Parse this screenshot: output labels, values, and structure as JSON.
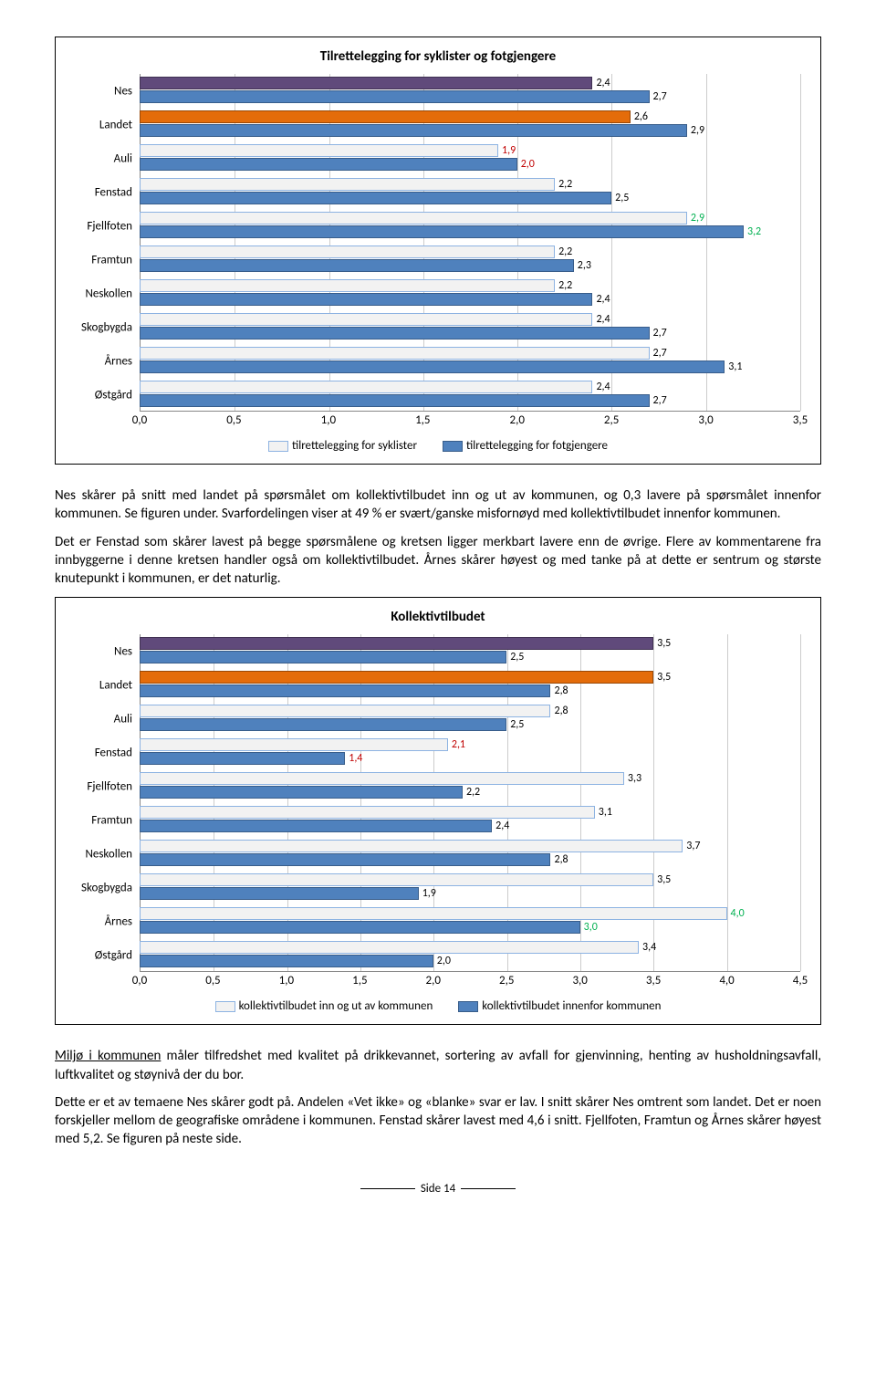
{
  "chart1": {
    "title": "Tilrettelegging for syklister og fotgjengere",
    "xmax": 3.5,
    "xstep": 0.5,
    "series": [
      {
        "name": "tilrettelegging for syklister",
        "fill": "#f2f2f2",
        "border": "#8db3e2"
      },
      {
        "name": "tilrettelegging for fotgjengere",
        "fill": "#4f81bd",
        "border": "#385d8a"
      }
    ],
    "special_bars": [
      {
        "cat": "Nes",
        "series": 0,
        "fill": "#604a7b",
        "border": "#403152"
      },
      {
        "cat": "Landet",
        "series": 0,
        "fill": "#e46c0a",
        "border": "#984807"
      }
    ],
    "label_colors": {
      "default": "#000000",
      "highlight_low": "#c00000",
      "highlight_high": "#00b050"
    },
    "categories": [
      "Nes",
      "Landet",
      "Auli",
      "Fenstad",
      "Fjellfoten",
      "Framtun",
      "Neskollen",
      "Skogbygda",
      "Årnes",
      "Østgård"
    ],
    "data": [
      {
        "cat": "Nes",
        "a": 2.4,
        "b": 2.7,
        "a_color": "#000000",
        "b_color": "#000000"
      },
      {
        "cat": "Landet",
        "a": 2.6,
        "b": 2.9,
        "a_color": "#000000",
        "b_color": "#000000"
      },
      {
        "cat": "Auli",
        "a": 1.9,
        "b": 2.0,
        "a_color": "#c00000",
        "b_color": "#c00000"
      },
      {
        "cat": "Fenstad",
        "a": 2.2,
        "b": 2.5,
        "a_color": "#000000",
        "b_color": "#000000"
      },
      {
        "cat": "Fjellfoten",
        "a": 2.9,
        "b": 3.2,
        "a_color": "#00b050",
        "b_color": "#00b050"
      },
      {
        "cat": "Framtun",
        "a": 2.2,
        "b": 2.3,
        "a_color": "#000000",
        "b_color": "#000000"
      },
      {
        "cat": "Neskollen",
        "a": 2.2,
        "b": 2.4,
        "a_color": "#000000",
        "b_color": "#000000"
      },
      {
        "cat": "Skogbygda",
        "a": 2.4,
        "b": 2.7,
        "a_color": "#000000",
        "b_color": "#000000"
      },
      {
        "cat": "Årnes",
        "a": 2.7,
        "b": 3.1,
        "a_color": "#000000",
        "b_color": "#000000"
      },
      {
        "cat": "Østgård",
        "a": 2.4,
        "b": 2.7,
        "a_color": "#000000",
        "b_color": "#000000"
      }
    ]
  },
  "para1": "Nes skårer på snitt med landet på spørsmålet om kollektivtilbudet inn og ut av kommunen, og 0,3 lavere på spørsmålet innenfor kommunen. Se figuren under. Svarfordelingen viser at 49 % er svært/ganske misfornøyd med kollektivtilbudet innenfor kommunen.",
  "para2": "Det er Fenstad som skårer lavest på begge spørsmålene og kretsen ligger merkbart lavere enn de øvrige. Flere av kommentarene fra innbyggerne i denne kretsen handler også om kollektivtilbudet. Årnes skårer høyest og med tanke på at dette er sentrum og største knutepunkt i kommunen, er det naturlig.",
  "chart2": {
    "title": "Kollektivtilbudet",
    "xmax": 4.5,
    "xstep": 0.5,
    "series": [
      {
        "name": "kollektivtilbudet inn og ut av kommunen",
        "fill": "#f2f2f2",
        "border": "#8db3e2"
      },
      {
        "name": "kollektivtilbudet innenfor kommunen",
        "fill": "#4f81bd",
        "border": "#385d8a"
      }
    ],
    "special_bars": [
      {
        "cat": "Nes",
        "series": 0,
        "fill": "#604a7b",
        "border": "#403152"
      },
      {
        "cat": "Landet",
        "series": 0,
        "fill": "#e46c0a",
        "border": "#984807"
      }
    ],
    "categories": [
      "Nes",
      "Landet",
      "Auli",
      "Fenstad",
      "Fjellfoten",
      "Framtun",
      "Neskollen",
      "Skogbygda",
      "Årnes",
      "Østgård"
    ],
    "data": [
      {
        "cat": "Nes",
        "a": 3.5,
        "b": 2.5,
        "a_color": "#000000",
        "b_color": "#000000"
      },
      {
        "cat": "Landet",
        "a": 3.5,
        "b": 2.8,
        "a_color": "#000000",
        "b_color": "#000000"
      },
      {
        "cat": "Auli",
        "a": 2.8,
        "b": 2.5,
        "a_color": "#000000",
        "b_color": "#000000"
      },
      {
        "cat": "Fenstad",
        "a": 2.1,
        "b": 1.4,
        "a_color": "#c00000",
        "b_color": "#c00000"
      },
      {
        "cat": "Fjellfoten",
        "a": 3.3,
        "b": 2.2,
        "a_color": "#000000",
        "b_color": "#000000"
      },
      {
        "cat": "Framtun",
        "a": 3.1,
        "b": 2.4,
        "a_color": "#000000",
        "b_color": "#000000"
      },
      {
        "cat": "Neskollen",
        "a": 3.7,
        "b": 2.8,
        "a_color": "#000000",
        "b_color": "#000000"
      },
      {
        "cat": "Skogbygda",
        "a": 3.5,
        "b": 1.9,
        "a_color": "#000000",
        "b_color": "#000000"
      },
      {
        "cat": "Årnes",
        "a": 4.0,
        "b": 3.0,
        "a_color": "#00b050",
        "b_color": "#00b050"
      },
      {
        "cat": "Østgård",
        "a": 3.4,
        "b": 2.0,
        "a_color": "#000000",
        "b_color": "#000000"
      }
    ]
  },
  "para3_prefix": "Miljø i kommunen",
  "para3_rest": " måler tilfredshet med kvalitet på drikkevannet, sortering av avfall for gjenvinning, henting av husholdningsavfall, luftkvalitet og støynivå der du bor.",
  "para4": "Dette er et av temaene Nes skårer godt på. Andelen «Vet ikke» og «blanke» svar er lav. I snitt skårer Nes omtrent som landet. Det er noen forskjeller mellom de geografiske områdene i kommunen. Fenstad skårer lavest med 4,6 i snitt. Fjellfoten, Framtun og Årnes skårer høyest med 5,2. Se figuren på neste side.",
  "footer": "Side 14"
}
